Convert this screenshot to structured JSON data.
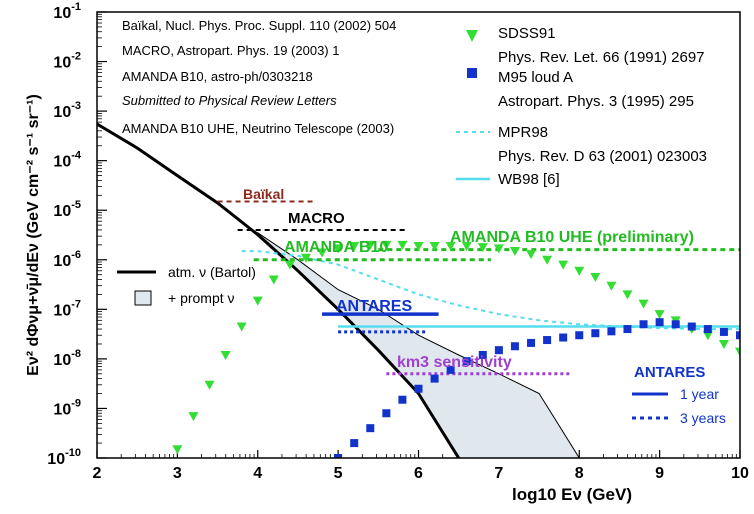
{
  "chart_data": {
    "type": "scatter",
    "xlabel": "log10 Eν (GeV)",
    "ylabel": "Eν² dΦνμ+ν̄μ/dEν (GeV cm⁻² s⁻¹ sr⁻¹)",
    "xlim": [
      2,
      10
    ],
    "ylim": [
      1e-10,
      0.1
    ],
    "y_scale": "log",
    "x_ticks": [
      "2",
      "3",
      "4",
      "5",
      "6",
      "7",
      "8",
      "9",
      "10"
    ],
    "y_ticks": [
      "10^-10",
      "10^-9",
      "10^-8",
      "10^-7",
      "10^-6",
      "10^-5",
      "10^-4",
      "10^-3",
      "10^-2",
      "10^-1"
    ],
    "y_tick_labels": [
      {
        "base": "10",
        "exp": "-10"
      },
      {
        "base": "10",
        "exp": "-9"
      },
      {
        "base": "10",
        "exp": "-8"
      },
      {
        "base": "10",
        "exp": "-7"
      },
      {
        "base": "10",
        "exp": "-6"
      },
      {
        "base": "10",
        "exp": "-5"
      },
      {
        "base": "10",
        "exp": "-4"
      },
      {
        "base": "10",
        "exp": "-3"
      },
      {
        "base": "10",
        "exp": "-2"
      },
      {
        "base": "10",
        "exp": "-1"
      }
    ],
    "references_left": [
      "Baïkal, Nucl. Phys. Proc. Suppl. 110 (2002) 504",
      "MACRO, Astropart. Phys. 19 (2003) 1",
      "AMANDA B10, astro-ph/0303218",
      "Submitted to Physical Review Letters",
      "AMANDA B10 UHE, Neutrino Telescope (2003)"
    ],
    "legend_right": [
      {
        "label": "SDSS91",
        "ref": "Phys. Rev. Let. 66 (1991) 2697",
        "color": "#33dd33",
        "marker": "triangle-down"
      },
      {
        "label": "M95 loud A",
        "ref": "Astropart. Phys. 3 (1995) 295",
        "color": "#1133cc",
        "marker": "square"
      },
      {
        "label": "MPR98",
        "ref": "Phys. Rev. D 63 (2001) 023003",
        "color": "#33ddee",
        "style": "dotted"
      },
      {
        "label": "WB98 [6]",
        "color": "#33ddee",
        "style": "solid"
      }
    ],
    "legend_left": [
      {
        "label": "atm. ν (Bartol)",
        "style": "solid",
        "color": "#000000"
      },
      {
        "label": "+ prompt ν",
        "style": "band",
        "color": "#e0e8ee"
      }
    ],
    "antares_legend": {
      "title": "ANTARES",
      "items": [
        "1 year",
        "3 years"
      ],
      "color": "#1133cc"
    },
    "annotations": [
      {
        "text": "Baïkal",
        "color": "#8b2b1e"
      },
      {
        "text": "MACRO",
        "color": "#000000"
      },
      {
        "text": "AMANDA B10",
        "color": "#22bb22"
      },
      {
        "text": "AMANDA B10 UHE (preliminary)",
        "color": "#22bb22"
      },
      {
        "text": "ANTARES",
        "color": "#1133cc"
      },
      {
        "text": "km3 sensitivity",
        "color": "#a040d0"
      }
    ],
    "limits": [
      {
        "name": "Baïkal",
        "x": [
          3.5,
          4.7
        ],
        "y": 1.5e-05,
        "color": "#8b2b1e",
        "style": "dashed"
      },
      {
        "name": "MACRO",
        "x": [
          3.75,
          5.85
        ],
        "y": 4e-06,
        "color": "#000000",
        "style": "dashed"
      },
      {
        "name": "AMANDA B10",
        "x": [
          3.95,
          6.9
        ],
        "y": 1e-06,
        "color": "#22bb22",
        "style": "dashed"
      },
      {
        "name": "AMANDA B10 UHE",
        "x": [
          5.5,
          10
        ],
        "y": 1.6e-06,
        "color": "#22bb22",
        "style": "dashed"
      },
      {
        "name": "ANTARES 1 year",
        "x": [
          4.8,
          6.25
        ],
        "y": 8e-08,
        "color": "#1133cc",
        "style": "solid"
      },
      {
        "name": "ANTARES 3 years",
        "x": [
          5,
          6.1
        ],
        "y": 3.5e-08,
        "color": "#1133cc",
        "style": "dotted"
      },
      {
        "name": "km3 sensitivity",
        "x": [
          5.6,
          7.9
        ],
        "y": 5e-09,
        "color": "#a040d0",
        "style": "dotted"
      }
    ],
    "atm_bartol": {
      "x": [
        2,
        2.5,
        3,
        3.5,
        4,
        4.5,
        5,
        5.5,
        6,
        6.5
      ],
      "y": [
        0.00055,
        0.00018,
        5e-05,
        1.4e-05,
        3.2e-06,
        6e-07,
        1e-07,
        1.5e-08,
        2e-09,
        1e-10
      ]
    },
    "prompt_upper": {
      "x": [
        4,
        4.5,
        5,
        5.5,
        6,
        6.5,
        7,
        7.5,
        8
      ],
      "y": [
        3.5e-06,
        1e-06,
        2.5e-07,
        1e-07,
        3e-08,
        1.2e-08,
        5e-09,
        2e-09,
        1e-10
      ]
    },
    "sdss91": {
      "x": [
        3,
        3.2,
        3.4,
        3.6,
        3.8,
        4,
        4.2,
        4.4,
        4.6,
        4.8,
        5,
        5.2,
        5.4,
        5.6,
        5.8,
        6,
        6.2,
        6.4,
        6.6,
        6.8,
        7,
        7.2,
        7.4,
        7.6,
        7.8,
        8,
        8.2,
        8.4,
        8.6,
        8.8,
        9,
        9.2,
        9.4,
        9.6,
        9.8,
        10
      ],
      "y": [
        1.5e-10,
        7e-10,
        3e-09,
        1.2e-08,
        4.5e-08,
        1.5e-07,
        4e-07,
        8e-07,
        1.1e-06,
        1.4e-06,
        1.7e-06,
        1.9e-06,
        2e-06,
        2e-06,
        2e-06,
        1.9e-06,
        1.9e-06,
        1.9e-06,
        1.9e-06,
        1.8e-06,
        1.7e-06,
        1.5e-06,
        1.3e-06,
        1e-06,
        8e-07,
        6e-07,
        4.5e-07,
        3e-07,
        2e-07,
        1.3e-07,
        8e-08,
        6e-08,
        4e-08,
        3e-08,
        2e-08,
        1.4e-08
      ]
    },
    "m95": {
      "x": [
        5,
        5.2,
        5.4,
        5.6,
        5.8,
        6,
        6.2,
        6.4,
        6.6,
        6.8,
        7,
        7.2,
        7.4,
        7.6,
        7.8,
        8,
        8.2,
        8.4,
        8.6,
        8.8,
        9,
        9.2,
        9.4,
        9.6,
        9.8,
        10
      ],
      "y": [
        1e-10,
        2e-10,
        4e-10,
        8e-10,
        1.5e-09,
        2.5e-09,
        4e-09,
        6e-09,
        9e-09,
        1.2e-08,
        1.5e-08,
        1.8e-08,
        2.1e-08,
        2.4e-08,
        2.7e-08,
        3e-08,
        3.3e-08,
        3.6e-08,
        4e-08,
        5e-08,
        5.5e-08,
        5e-08,
        4.5e-08,
        4e-08,
        3.5e-08,
        3e-08
      ]
    },
    "mpr98": {
      "x": [
        3.8,
        4,
        4.5,
        5,
        5.5,
        6,
        6.5,
        7,
        7.5,
        8,
        8.5,
        9,
        9.5,
        10
      ],
      "y": [
        1.5e-06,
        1.5e-06,
        1.2e-06,
        8e-07,
        4e-07,
        2e-07,
        1.2e-07,
        8e-08,
        6e-08,
        5e-08,
        4.5e-08,
        4.2e-08,
        4e-08,
        4e-08
      ]
    },
    "wb98": {
      "x": [
        5,
        10
      ],
      "y": [
        4.5e-08,
        4.5e-08
      ]
    }
  }
}
